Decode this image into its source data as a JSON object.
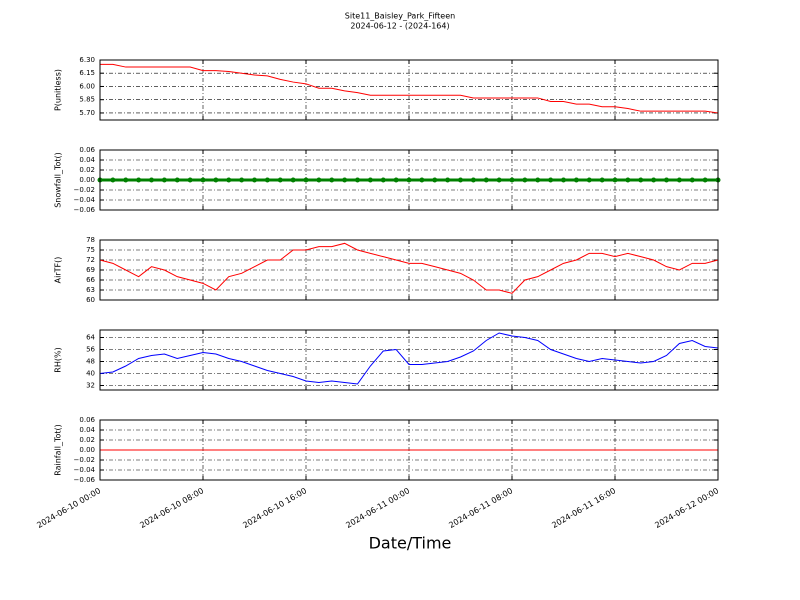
{
  "chart_data": [
    {
      "type": "line",
      "title": "Site11_Baisley_Park_Fifteen",
      "subtitle": "2024-06-12 - (2024-164)",
      "ylabel": "P(unitless)",
      "x": [
        "2024-06-10 00:00",
        "2024-06-10 01:00",
        "2024-06-10 02:00",
        "2024-06-10 03:00",
        "2024-06-10 04:00",
        "2024-06-10 05:00",
        "2024-06-10 06:00",
        "2024-06-10 07:00",
        "2024-06-10 08:00",
        "2024-06-10 09:00",
        "2024-06-10 10:00",
        "2024-06-10 11:00",
        "2024-06-10 12:00",
        "2024-06-10 13:00",
        "2024-06-10 14:00",
        "2024-06-10 15:00",
        "2024-06-10 16:00",
        "2024-06-10 17:00",
        "2024-06-10 18:00",
        "2024-06-10 19:00",
        "2024-06-10 20:00",
        "2024-06-10 21:00",
        "2024-06-10 22:00",
        "2024-06-10 23:00",
        "2024-06-11 00:00",
        "2024-06-11 01:00",
        "2024-06-11 02:00",
        "2024-06-11 03:00",
        "2024-06-11 04:00",
        "2024-06-11 05:00",
        "2024-06-11 06:00",
        "2024-06-11 07:00",
        "2024-06-11 08:00",
        "2024-06-11 09:00",
        "2024-06-11 10:00",
        "2024-06-11 11:00",
        "2024-06-11 12:00",
        "2024-06-11 13:00",
        "2024-06-11 14:00",
        "2024-06-11 15:00",
        "2024-06-11 16:00",
        "2024-06-11 17:00",
        "2024-06-11 18:00",
        "2024-06-11 19:00",
        "2024-06-11 20:00",
        "2024-06-11 21:00",
        "2024-06-11 22:00",
        "2024-06-11 23:00",
        "2024-06-12 00:00"
      ],
      "series": [
        {
          "color": "#ff0000",
          "values": [
            6.25,
            6.25,
            6.22,
            6.22,
            6.22,
            6.22,
            6.22,
            6.22,
            6.18,
            6.18,
            6.17,
            6.15,
            6.13,
            6.12,
            6.08,
            6.05,
            6.03,
            5.98,
            5.98,
            5.95,
            5.93,
            5.9,
            5.9,
            5.9,
            5.9,
            5.9,
            5.9,
            5.9,
            5.9,
            5.87,
            5.87,
            5.87,
            5.87,
            5.87,
            5.87,
            5.83,
            5.83,
            5.8,
            5.8,
            5.77,
            5.77,
            5.75,
            5.72,
            5.72,
            5.72,
            5.72,
            5.72,
            5.72,
            5.7
          ]
        }
      ],
      "xlim": [
        "2024-06-10 00:00",
        "2024-06-12 00:00"
      ],
      "xticks": [
        "2024-06-10 00:00",
        "2024-06-10 08:00",
        "2024-06-10 16:00",
        "2024-06-11 00:00",
        "2024-06-11 08:00",
        "2024-06-11 16:00",
        "2024-06-12 00:00"
      ],
      "ylim": [
        5.62,
        6.3
      ],
      "yticks": [
        {
          "value": 5.7,
          "label": "5.70"
        },
        {
          "value": 5.85,
          "label": "5.85"
        },
        {
          "value": 6.0,
          "label": "6.00"
        },
        {
          "value": 6.15,
          "label": "6.15"
        },
        {
          "value": 6.3,
          "label": "6.30"
        }
      ],
      "grid": true
    },
    {
      "type": "line",
      "ylabel": "Snowfall_Tot()",
      "markers": true,
      "x": [
        "2024-06-10 00:00",
        "2024-06-10 01:00",
        "2024-06-10 02:00",
        "2024-06-10 03:00",
        "2024-06-10 04:00",
        "2024-06-10 05:00",
        "2024-06-10 06:00",
        "2024-06-10 07:00",
        "2024-06-10 08:00",
        "2024-06-10 09:00",
        "2024-06-10 10:00",
        "2024-06-10 11:00",
        "2024-06-10 12:00",
        "2024-06-10 13:00",
        "2024-06-10 14:00",
        "2024-06-10 15:00",
        "2024-06-10 16:00",
        "2024-06-10 17:00",
        "2024-06-10 18:00",
        "2024-06-10 19:00",
        "2024-06-10 20:00",
        "2024-06-10 21:00",
        "2024-06-10 22:00",
        "2024-06-10 23:00",
        "2024-06-11 00:00",
        "2024-06-11 01:00",
        "2024-06-11 02:00",
        "2024-06-11 03:00",
        "2024-06-11 04:00",
        "2024-06-11 05:00",
        "2024-06-11 06:00",
        "2024-06-11 07:00",
        "2024-06-11 08:00",
        "2024-06-11 09:00",
        "2024-06-11 10:00",
        "2024-06-11 11:00",
        "2024-06-11 12:00",
        "2024-06-11 13:00",
        "2024-06-11 14:00",
        "2024-06-11 15:00",
        "2024-06-11 16:00",
        "2024-06-11 17:00",
        "2024-06-11 18:00",
        "2024-06-11 19:00",
        "2024-06-11 20:00",
        "2024-06-11 21:00",
        "2024-06-11 22:00",
        "2024-06-11 23:00",
        "2024-06-12 00:00"
      ],
      "series": [
        {
          "color": "#008000",
          "values": [
            0,
            0,
            0,
            0,
            0,
            0,
            0,
            0,
            0,
            0,
            0,
            0,
            0,
            0,
            0,
            0,
            0,
            0,
            0,
            0,
            0,
            0,
            0,
            0,
            0,
            0,
            0,
            0,
            0,
            0,
            0,
            0,
            0,
            0,
            0,
            0,
            0,
            0,
            0,
            0,
            0,
            0,
            0,
            0,
            0,
            0,
            0,
            0,
            0
          ]
        }
      ],
      "xlim": [
        "2024-06-10 00:00",
        "2024-06-12 00:00"
      ],
      "xticks": [
        "2024-06-10 00:00",
        "2024-06-10 08:00",
        "2024-06-10 16:00",
        "2024-06-11 00:00",
        "2024-06-11 08:00",
        "2024-06-11 16:00",
        "2024-06-12 00:00"
      ],
      "ylim": [
        -0.06,
        0.06
      ],
      "yticks": [
        {
          "value": -0.06,
          "label": "−0.06"
        },
        {
          "value": -0.04,
          "label": "−0.04"
        },
        {
          "value": -0.02,
          "label": "−0.02"
        },
        {
          "value": 0,
          "label": "0.00"
        },
        {
          "value": 0.02,
          "label": "0.02"
        },
        {
          "value": 0.04,
          "label": "0.04"
        },
        {
          "value": 0.06,
          "label": "0.06"
        }
      ],
      "grid": true
    },
    {
      "type": "line",
      "ylabel": "AirTF()",
      "x": [
        "2024-06-10 00:00",
        "2024-06-10 01:00",
        "2024-06-10 02:00",
        "2024-06-10 03:00",
        "2024-06-10 04:00",
        "2024-06-10 05:00",
        "2024-06-10 06:00",
        "2024-06-10 07:00",
        "2024-06-10 08:00",
        "2024-06-10 09:00",
        "2024-06-10 10:00",
        "2024-06-10 11:00",
        "2024-06-10 12:00",
        "2024-06-10 13:00",
        "2024-06-10 14:00",
        "2024-06-10 15:00",
        "2024-06-10 16:00",
        "2024-06-10 17:00",
        "2024-06-10 18:00",
        "2024-06-10 19:00",
        "2024-06-10 20:00",
        "2024-06-10 21:00",
        "2024-06-10 22:00",
        "2024-06-10 23:00",
        "2024-06-11 00:00",
        "2024-06-11 01:00",
        "2024-06-11 02:00",
        "2024-06-11 03:00",
        "2024-06-11 04:00",
        "2024-06-11 05:00",
        "2024-06-11 06:00",
        "2024-06-11 07:00",
        "2024-06-11 08:00",
        "2024-06-11 09:00",
        "2024-06-11 10:00",
        "2024-06-11 11:00",
        "2024-06-11 12:00",
        "2024-06-11 13:00",
        "2024-06-11 14:00",
        "2024-06-11 15:00",
        "2024-06-11 16:00",
        "2024-06-11 17:00",
        "2024-06-11 18:00",
        "2024-06-11 19:00",
        "2024-06-11 20:00",
        "2024-06-11 21:00",
        "2024-06-11 22:00",
        "2024-06-11 23:00",
        "2024-06-12 00:00"
      ],
      "series": [
        {
          "color": "#ff0000",
          "values": [
            72,
            71,
            69,
            67,
            70,
            69,
            67,
            66,
            65,
            63,
            67,
            68,
            70,
            72,
            72,
            75,
            75,
            76,
            76,
            77,
            75,
            74,
            73,
            72,
            71,
            71,
            70,
            69,
            68,
            66,
            63,
            63,
            62,
            66,
            67,
            69,
            71,
            72,
            74,
            74,
            73,
            74,
            73,
            72,
            70,
            69,
            71,
            71,
            72
          ]
        }
      ],
      "xlim": [
        "2024-06-10 00:00",
        "2024-06-12 00:00"
      ],
      "xticks": [
        "2024-06-10 00:00",
        "2024-06-10 08:00",
        "2024-06-10 16:00",
        "2024-06-11 00:00",
        "2024-06-11 08:00",
        "2024-06-11 16:00",
        "2024-06-12 00:00"
      ],
      "ylim": [
        60,
        78
      ],
      "yticks": [
        60,
        63,
        66,
        69,
        72,
        75,
        78
      ],
      "grid": true
    },
    {
      "type": "line",
      "ylabel": "RH(%)",
      "x": [
        "2024-06-10 00:00",
        "2024-06-10 01:00",
        "2024-06-10 02:00",
        "2024-06-10 03:00",
        "2024-06-10 04:00",
        "2024-06-10 05:00",
        "2024-06-10 06:00",
        "2024-06-10 07:00",
        "2024-06-10 08:00",
        "2024-06-10 09:00",
        "2024-06-10 10:00",
        "2024-06-10 11:00",
        "2024-06-10 12:00",
        "2024-06-10 13:00",
        "2024-06-10 14:00",
        "2024-06-10 15:00",
        "2024-06-10 16:00",
        "2024-06-10 17:00",
        "2024-06-10 18:00",
        "2024-06-10 19:00",
        "2024-06-10 20:00",
        "2024-06-10 21:00",
        "2024-06-10 22:00",
        "2024-06-10 23:00",
        "2024-06-11 00:00",
        "2024-06-11 01:00",
        "2024-06-11 02:00",
        "2024-06-11 03:00",
        "2024-06-11 04:00",
        "2024-06-11 05:00",
        "2024-06-11 06:00",
        "2024-06-11 07:00",
        "2024-06-11 08:00",
        "2024-06-11 09:00",
        "2024-06-11 10:00",
        "2024-06-11 11:00",
        "2024-06-11 12:00",
        "2024-06-11 13:00",
        "2024-06-11 14:00",
        "2024-06-11 15:00",
        "2024-06-11 16:00",
        "2024-06-11 17:00",
        "2024-06-11 18:00",
        "2024-06-11 19:00",
        "2024-06-11 20:00",
        "2024-06-11 21:00",
        "2024-06-11 22:00",
        "2024-06-11 23:00",
        "2024-06-12 00:00"
      ],
      "series": [
        {
          "color": "#0000ff",
          "values": [
            40,
            41,
            45,
            50,
            52,
            53,
            50,
            52,
            54,
            53,
            50,
            48,
            45,
            42,
            40,
            38,
            35,
            34,
            35,
            34,
            33,
            45,
            55,
            56,
            46,
            46,
            47,
            48,
            51,
            55,
            62,
            67,
            65,
            64,
            62,
            56,
            53,
            50,
            48,
            50,
            49,
            48,
            47,
            48,
            52,
            60,
            62,
            58,
            57
          ]
        }
      ],
      "xlim": [
        "2024-06-10 00:00",
        "2024-06-12 00:00"
      ],
      "xticks": [
        "2024-06-10 00:00",
        "2024-06-10 08:00",
        "2024-06-10 16:00",
        "2024-06-11 00:00",
        "2024-06-11 08:00",
        "2024-06-11 16:00",
        "2024-06-12 00:00"
      ],
      "ylim": [
        29,
        69
      ],
      "yticks": [
        32,
        40,
        48,
        56,
        64
      ],
      "grid": true
    },
    {
      "type": "line",
      "ylabel": "Rainfall_Tot()",
      "xlabel": "Date/Time",
      "x": [
        "2024-06-10 00:00",
        "2024-06-10 01:00",
        "2024-06-10 02:00",
        "2024-06-10 03:00",
        "2024-06-10 04:00",
        "2024-06-10 05:00",
        "2024-06-10 06:00",
        "2024-06-10 07:00",
        "2024-06-10 08:00",
        "2024-06-10 09:00",
        "2024-06-10 10:00",
        "2024-06-10 11:00",
        "2024-06-10 12:00",
        "2024-06-10 13:00",
        "2024-06-10 14:00",
        "2024-06-10 15:00",
        "2024-06-10 16:00",
        "2024-06-10 17:00",
        "2024-06-10 18:00",
        "2024-06-10 19:00",
        "2024-06-10 20:00",
        "2024-06-10 21:00",
        "2024-06-10 22:00",
        "2024-06-10 23:00",
        "2024-06-11 00:00",
        "2024-06-11 01:00",
        "2024-06-11 02:00",
        "2024-06-11 03:00",
        "2024-06-11 04:00",
        "2024-06-11 05:00",
        "2024-06-11 06:00",
        "2024-06-11 07:00",
        "2024-06-11 08:00",
        "2024-06-11 09:00",
        "2024-06-11 10:00",
        "2024-06-11 11:00",
        "2024-06-11 12:00",
        "2024-06-11 13:00",
        "2024-06-11 14:00",
        "2024-06-11 15:00",
        "2024-06-11 16:00",
        "2024-06-11 17:00",
        "2024-06-11 18:00",
        "2024-06-11 19:00",
        "2024-06-11 20:00",
        "2024-06-11 21:00",
        "2024-06-11 22:00",
        "2024-06-11 23:00",
        "2024-06-12 00:00"
      ],
      "series": [
        {
          "color": "#ff0000",
          "values": [
            0,
            0,
            0,
            0,
            0,
            0,
            0,
            0,
            0,
            0,
            0,
            0,
            0,
            0,
            0,
            0,
            0,
            0,
            0,
            0,
            0,
            0,
            0,
            0,
            0,
            0,
            0,
            0,
            0,
            0,
            0,
            0,
            0,
            0,
            0,
            0,
            0,
            0,
            0,
            0,
            0,
            0,
            0,
            0,
            0,
            0,
            0,
            0,
            0
          ]
        }
      ],
      "xlim": [
        "2024-06-10 00:00",
        "2024-06-12 00:00"
      ],
      "xticks": [
        "2024-06-10 00:00",
        "2024-06-10 08:00",
        "2024-06-10 16:00",
        "2024-06-11 00:00",
        "2024-06-11 08:00",
        "2024-06-11 16:00",
        "2024-06-12 00:00"
      ],
      "xtick_labels": true,
      "ylim": [
        -0.06,
        0.06
      ],
      "yticks": [
        {
          "value": -0.06,
          "label": "−0.06"
        },
        {
          "value": -0.04,
          "label": "−0.04"
        },
        {
          "value": -0.02,
          "label": "−0.02"
        },
        {
          "value": 0,
          "label": "0.00"
        },
        {
          "value": 0.02,
          "label": "0.02"
        },
        {
          "value": 0.04,
          "label": "0.04"
        },
        {
          "value": 0.06,
          "label": "0.06"
        }
      ],
      "grid": true
    }
  ]
}
